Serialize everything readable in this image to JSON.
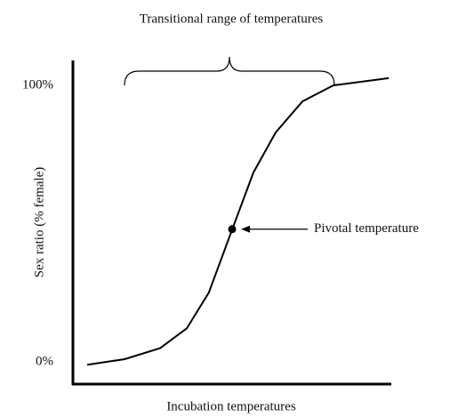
{
  "chart_data": {
    "type": "line",
    "title": "Transitional range of temperatures",
    "x_label": "Incubation temperatures",
    "y_label": "Sex ratio (% female)",
    "xlim": [
      0,
      100
    ],
    "ylim": [
      -8,
      109
    ],
    "yticks": [
      {
        "value": 0,
        "label": "0%"
      },
      {
        "value": 100,
        "label": "100%"
      }
    ],
    "x": [
      4.5,
      16.2,
      27.4,
      35.8,
      42.7,
      49.7,
      56.7,
      63.7,
      72.1,
      81.8,
      99.2
    ],
    "series": [
      {
        "color": "#000000",
        "values": [
          -1,
          1,
          5,
          12.2,
          25.1,
          46.9,
          68.5,
          83,
          94.2,
          100,
          102.6
        ]
      }
    ],
    "annotations": [
      {
        "text": "Pivotal temperature",
        "x": 50,
        "y": 48
      }
    ]
  }
}
